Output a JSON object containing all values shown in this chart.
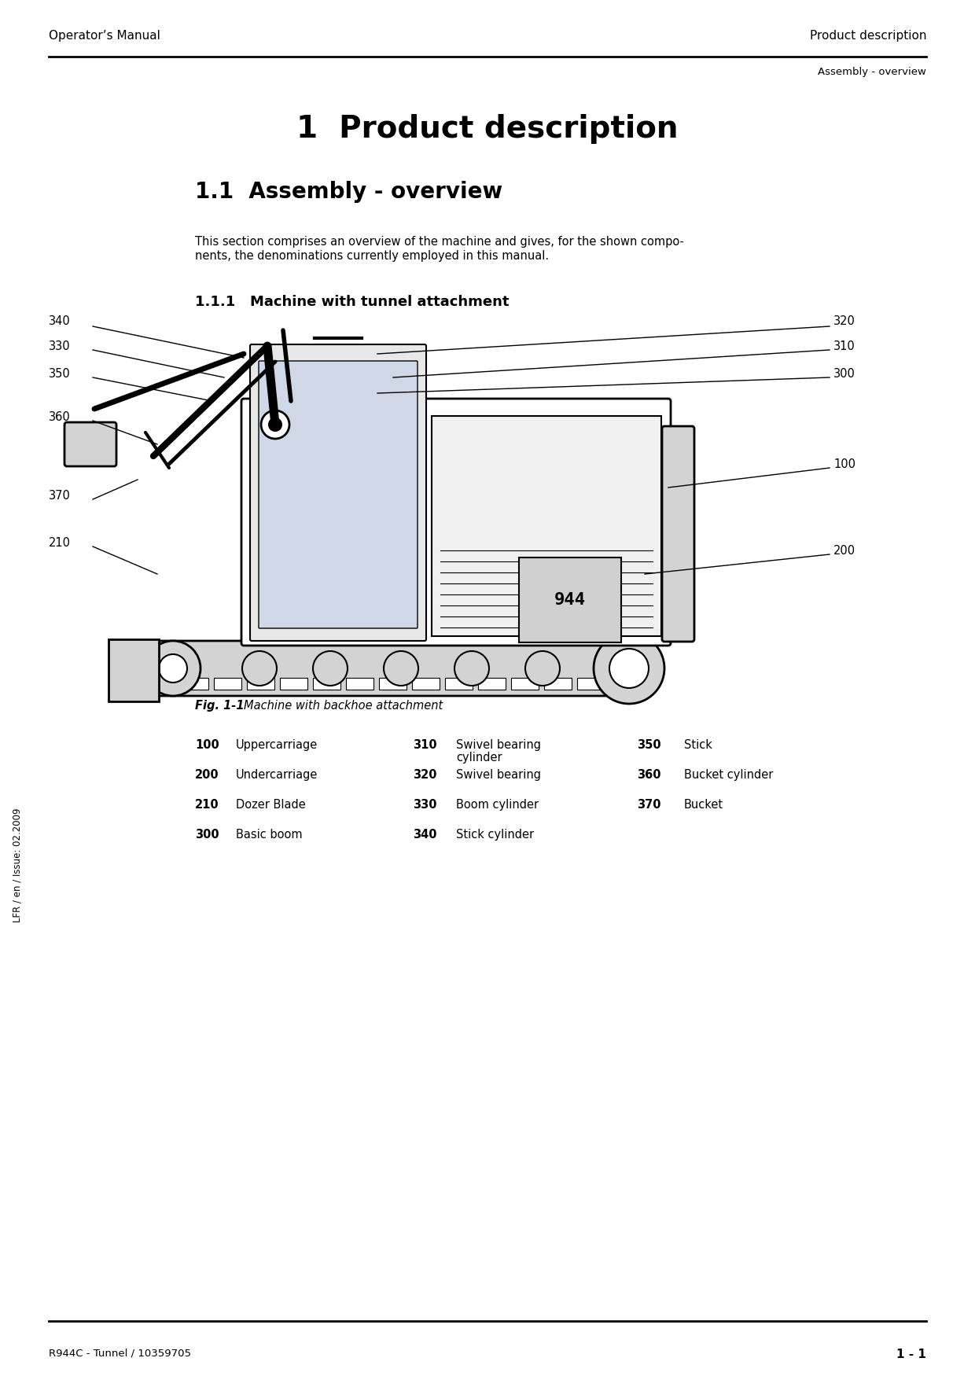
{
  "page_title": "1  Product description",
  "section_title": "1.1  Assembly - overview",
  "subsection_title": "1.1.1   Machine with tunnel attachment",
  "header_left": "Operator’s Manual",
  "header_right": "Product description",
  "header_sub_right": "Assembly - overview",
  "body_text": "This section comprises an overview of the machine and gives, for the shown compo-\nnents, the denominations currently employed in this manual.",
  "fig_caption": "Fig. 1-1    Machine with backhoe attachment",
  "footer_left": "R944C - Tunnel / 10359705",
  "footer_right": "1 - 1",
  "side_text": "LFR / en / Issue: 02.2009",
  "parts_table": [
    {
      "num": "100",
      "name": "Uppercarriage",
      "col": 1
    },
    {
      "num": "200",
      "name": "Undercarriage",
      "col": 1
    },
    {
      "num": "210",
      "name": "Dozer Blade",
      "col": 1
    },
    {
      "num": "300",
      "name": "Basic boom",
      "col": 1
    },
    {
      "num": "310",
      "name": "Swivel bearing\ncylinder",
      "col": 2
    },
    {
      "num": "320",
      "name": "Swivel bearing",
      "col": 2
    },
    {
      "num": "330",
      "name": "Boom cylinder",
      "col": 2
    },
    {
      "num": "340",
      "name": "Stick cylinder",
      "col": 2
    },
    {
      "num": "350",
      "name": "Stick",
      "col": 3
    },
    {
      "num": "360",
      "name": "Bucket cylinder",
      "col": 3
    },
    {
      "num": "370",
      "name": "Bucket",
      "col": 3
    }
  ],
  "bg_color": "#ffffff",
  "text_color": "#000000",
  "line_color": "#000000"
}
